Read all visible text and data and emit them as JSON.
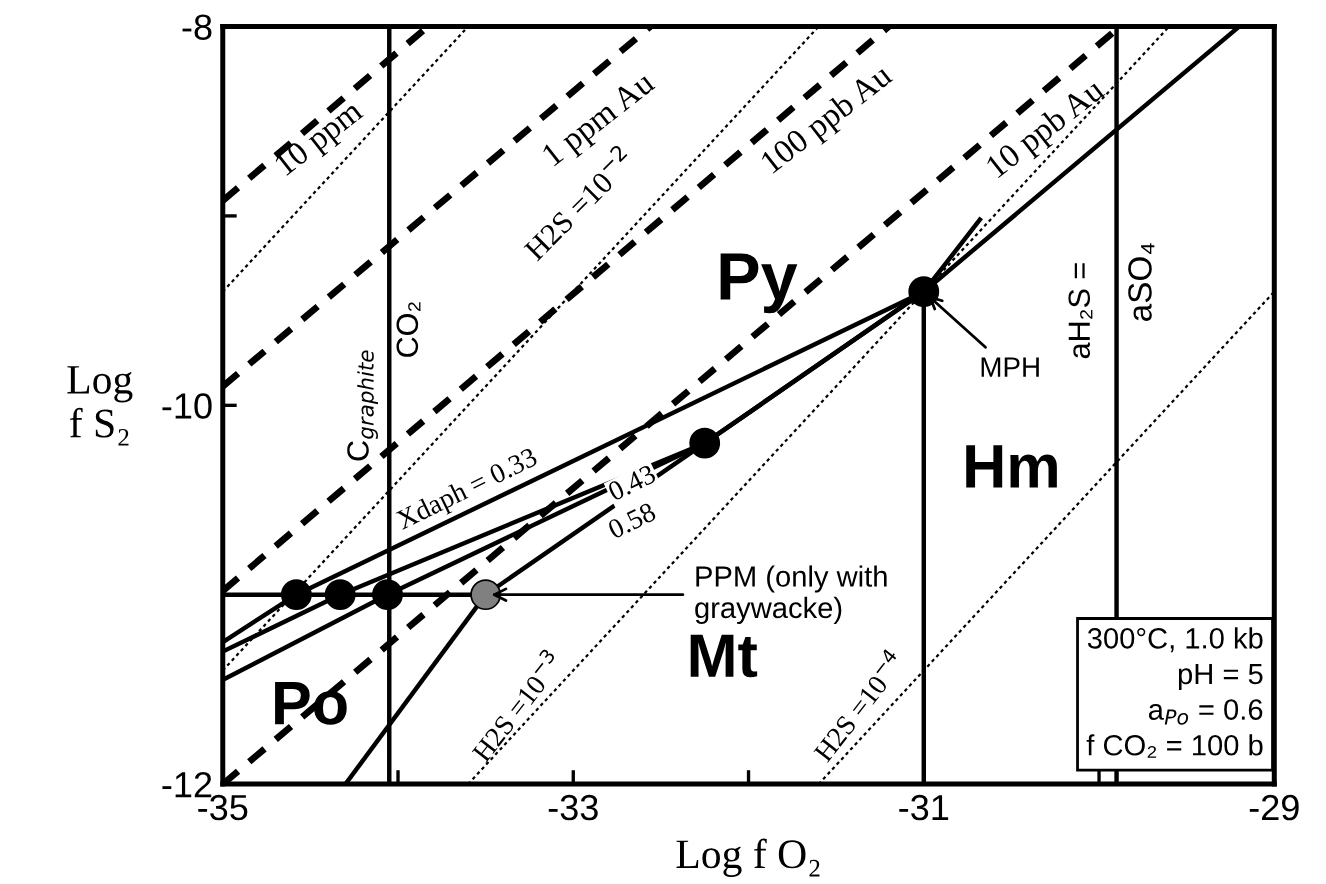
{
  "chart_data": {
    "type": "line",
    "xlabel": "Log f O₂",
    "ylabel": "Log\nf S₂",
    "xlim": [
      -35,
      -29
    ],
    "ylim": [
      -12,
      -8
    ],
    "xticks": [
      -35,
      {
        "value": -34,
        "label": null
      },
      -33,
      {
        "value": -32,
        "label": null
      },
      -31,
      {
        "value": -30,
        "label": null
      },
      -29
    ],
    "yticks": [
      -12,
      {
        "value": -11,
        "label": null
      },
      -10,
      {
        "value": -9,
        "label": null
      },
      -8
    ],
    "grid": false,
    "legend": false,
    "series": [
      {
        "color": "#000000",
        "line_style": "solid",
        "x": [
          -35,
          -33.5
        ],
        "values": [
          -11,
          -11
        ]
      },
      {
        "color": "#000000",
        "line_style": "solid",
        "x": [
          -34.05,
          -34.05
        ],
        "values": [
          -12,
          -8
        ]
      },
      {
        "color": "#000000",
        "line_style": "solid",
        "x": [
          -31,
          -31,
          -29.2
        ],
        "values": [
          -12,
          -9.4,
          -8
        ]
      },
      {
        "color": "#000000",
        "line_style": "solid",
        "x": [
          -29.9,
          -29.9
        ],
        "values": [
          -12,
          -8
        ]
      },
      {
        "color": "#000000",
        "line_style": "solid",
        "x": [
          -33.5,
          -31
        ],
        "values": [
          -11,
          -9.4
        ]
      },
      {
        "color": "#000000",
        "line_style": "solid",
        "x": [
          -34.3,
          -33.5
        ],
        "values": [
          -12,
          -11
        ]
      },
      {
        "color": "#000000",
        "line_style": "solid",
        "x": [
          -35,
          -34.58,
          -31.0,
          -30.68
        ],
        "values": [
          -11.25,
          -11.0,
          -9.4,
          -9.02
        ]
      },
      {
        "color": "#000000",
        "line_style": "solid",
        "x": [
          -35,
          -34.33,
          -32.25,
          -31.0
        ],
        "values": [
          -11.3,
          -11.0,
          -10.2,
          -9.4
        ]
      },
      {
        "color": "#000000",
        "line_style": "solid",
        "x": [
          -35,
          -34.06,
          -32.25
        ],
        "values": [
          -11.45,
          -11.0,
          -10.2
        ]
      },
      {
        "color": "#000000",
        "line_style": "dashed",
        "x": [
          -35,
          -33.83
        ],
        "values": [
          -8.92,
          -8
        ]
      },
      {
        "color": "#000000",
        "line_style": "dashed",
        "x": [
          -35,
          -32.56
        ],
        "values": [
          -9.9,
          -8
        ]
      },
      {
        "color": "#000000",
        "line_style": "dashed",
        "x": [
          -35,
          -31.2
        ],
        "values": [
          -10.98,
          -8
        ]
      },
      {
        "color": "#000000",
        "line_style": "dashed",
        "x": [
          -35,
          -29.88
        ],
        "values": [
          -12,
          -8
        ]
      },
      {
        "color": "#000000",
        "line_style": "dotted",
        "x": [
          -35,
          -33.6
        ],
        "values": [
          -9.4,
          -8
        ]
      },
      {
        "color": "#000000",
        "line_style": "dotted",
        "x": [
          -35,
          -31.6
        ],
        "values": [
          -11.4,
          -8
        ]
      },
      {
        "color": "#000000",
        "line_style": "dotted",
        "x": [
          -33.6,
          -29.6
        ],
        "values": [
          -12,
          -8
        ]
      },
      {
        "color": "#000000",
        "line_style": "dotted",
        "x": [
          -31.6,
          -29
        ],
        "values": [
          -12,
          -9.4
        ]
      },
      {
        "type": "scatter",
        "marker": "circle",
        "color": "#000000",
        "x": [
          -34.58,
          -34.33,
          -34.06,
          -32.25,
          -31.0
        ],
        "values": [
          -11,
          -11,
          -11,
          -10.2,
          -9.4
        ]
      },
      {
        "type": "scatter",
        "marker": "circle",
        "color": "#808080",
        "x": [
          -33.5
        ],
        "values": [
          -11
        ]
      }
    ],
    "annotations": [
      "10 ppm",
      "1 ppm Au",
      "H2S =10$^{−2}$",
      "100 ppb Au",
      "10 ppb Au",
      "C$_{graphite}$",
      "CO₂",
      "Py",
      "aH₂S =",
      "aSO₄",
      {
        "text": "MPH",
        "x": -31.0,
        "y": -9.4
      },
      "Hm",
      "Xdaph = 0.33",
      "0.43",
      "0.58",
      {
        "text": "PPM (only with\ngraywacke)",
        "x": -33.5,
        "y": -11.0
      },
      "Mt",
      "Po",
      "H2S =10$^{−3}$",
      "H2S =10$^{−4}$",
      "300°C, 1.0 kb\npH = 5\na$_{Po}$ = 0.6\nf CO₂ = 100 b"
    ]
  }
}
